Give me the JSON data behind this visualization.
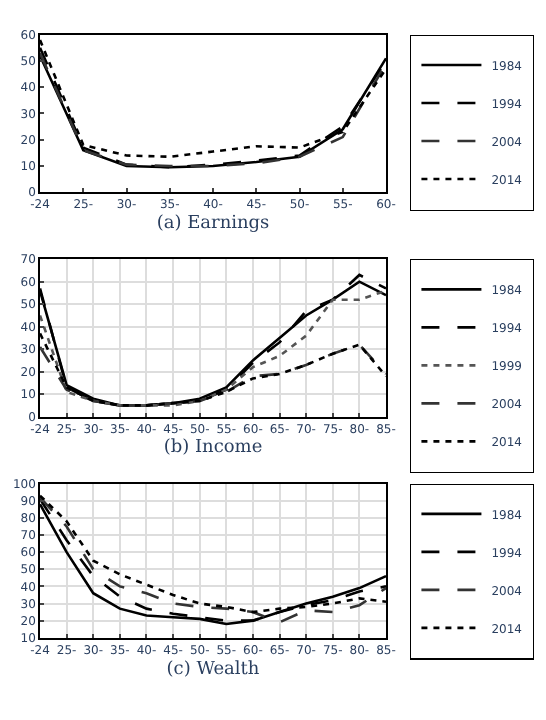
{
  "chart_data": [
    {
      "type": "line",
      "xlabel": "(a) Earnings",
      "categories": [
        "-24",
        "25-",
        "30-",
        "35-",
        "40-",
        "45-",
        "50-",
        "55-",
        "60-"
      ],
      "ylim": [
        0,
        60
      ],
      "yticks": [
        0,
        10,
        20,
        30,
        40,
        50,
        60
      ],
      "grid": false,
      "legend": "right",
      "series": [
        {
          "name": "1984",
          "color": "#000000",
          "line_style": "solid",
          "values": [
            52,
            16,
            10,
            9.5,
            10,
            11.5,
            13.5,
            24,
            51
          ]
        },
        {
          "name": "1994",
          "color": "#000000",
          "line_style": "dashed",
          "values": [
            55,
            17,
            10.5,
            9.5,
            10.5,
            12,
            14,
            25,
            50
          ]
        },
        {
          "name": "2004",
          "color": "#333333",
          "line_style": "dashed",
          "values": [
            53,
            16,
            10.5,
            10,
            10,
            11,
            13.5,
            21,
            49
          ]
        },
        {
          "name": "2014",
          "color": "#000000",
          "line_style": "dotted",
          "values": [
            58,
            18,
            14,
            13.5,
            15.5,
            17.5,
            17,
            23,
            47
          ]
        }
      ]
    },
    {
      "type": "line",
      "xlabel": "(b) Income",
      "categories": [
        "-24",
        "25-",
        "30-",
        "35-",
        "40-",
        "45-",
        "50-",
        "55-",
        "60-",
        "65-",
        "70-",
        "75-",
        "80-",
        "85-"
      ],
      "ylim": [
        0,
        70
      ],
      "yticks": [
        0,
        10,
        20,
        30,
        40,
        50,
        60,
        70
      ],
      "grid": true,
      "legend": "right",
      "series": [
        {
          "name": "1984",
          "color": "#000000",
          "line_style": "solid",
          "values": [
            56,
            14,
            8,
            5,
            5,
            6,
            8,
            13,
            25,
            35,
            45,
            52,
            60,
            54
          ]
        },
        {
          "name": "1994",
          "color": "#000000",
          "line_style": "dashed",
          "values": [
            57,
            13,
            7,
            5,
            5,
            6,
            7,
            12,
            24,
            33,
            47,
            52,
            63,
            57
          ]
        },
        {
          "name": "1999",
          "color": "#555555",
          "line_style": "dotted",
          "values": [
            45,
            11,
            7,
            5,
            5,
            5,
            7,
            12,
            22,
            27,
            36,
            52,
            52,
            56
          ]
        },
        {
          "name": "2004",
          "color": "#333333",
          "line_style": "dashed",
          "values": [
            31,
            12,
            7,
            5,
            5,
            6,
            7,
            11,
            18,
            19,
            23,
            28,
            32,
            19
          ]
        },
        {
          "name": "2014",
          "color": "#000000",
          "line_style": "dotted",
          "values": [
            37,
            13,
            7,
            5,
            5,
            6,
            7,
            11,
            17,
            19,
            23,
            28,
            32,
            18
          ]
        }
      ]
    },
    {
      "type": "line",
      "xlabel": "(c) Wealth",
      "categories": [
        "-24",
        "25-",
        "30-",
        "35-",
        "40-",
        "45-",
        "50-",
        "55-",
        "60-",
        "65-",
        "70-",
        "75-",
        "80-",
        "85-"
      ],
      "ylim": [
        10,
        100
      ],
      "yticks": [
        10,
        20,
        30,
        40,
        50,
        60,
        70,
        80,
        90,
        100
      ],
      "grid": true,
      "legend": "right",
      "series": [
        {
          "name": "1984",
          "color": "#000000",
          "line_style": "solid",
          "values": [
            88,
            60,
            36,
            27,
            23,
            22,
            21,
            18,
            20,
            25,
            30,
            34,
            39,
            46
          ]
        },
        {
          "name": "1994",
          "color": "#000000",
          "line_style": "dashed",
          "values": [
            91,
            67,
            46,
            34,
            27,
            24,
            22,
            20,
            20,
            25,
            29,
            32,
            37,
            40
          ]
        },
        {
          "name": "2004",
          "color": "#333333",
          "line_style": "dashed",
          "values": [
            92,
            75,
            50,
            40,
            36,
            30,
            28,
            27,
            25,
            19,
            26,
            25,
            29,
            39
          ]
        },
        {
          "name": "2014",
          "color": "#000000",
          "line_style": "dotted",
          "values": [
            93,
            78,
            55,
            47,
            41,
            35,
            30,
            28,
            25,
            27,
            28,
            30,
            33,
            31
          ]
        }
      ]
    }
  ]
}
